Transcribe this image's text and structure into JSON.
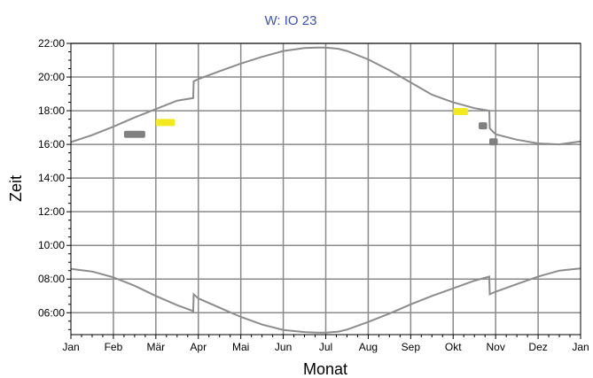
{
  "chart_data": {
    "type": "line",
    "title": "W: IO 23",
    "xlabel": "Monat",
    "ylabel": "Zeit",
    "x_tick_labels": [
      "Jan",
      "Feb",
      "Mär",
      "Apr",
      "Mai",
      "Jun",
      "Jul",
      "Aug",
      "Sep",
      "Okt",
      "Nov",
      "Dez",
      "Jan"
    ],
    "y_tick_labels": [
      "06:00",
      "08:00",
      "10:00",
      "12:00",
      "14:00",
      "16:00",
      "18:00",
      "20:00",
      "22:00"
    ],
    "xlim": [
      0,
      12
    ],
    "ylim": [
      4.7,
      22.0
    ],
    "grid": true,
    "series": [
      {
        "role": "upper",
        "color": "#8c8c8c",
        "x": [
          0,
          0.5,
          1,
          1.5,
          2,
          2.5,
          2.88,
          2.89,
          3,
          3.5,
          4,
          4.5,
          5,
          5.5,
          5.8,
          6.0,
          6.3,
          6.5,
          7,
          7.5,
          8,
          8.5,
          9,
          9.5,
          9.85,
          9.86,
          10,
          10.5,
          11,
          11.5,
          12
        ],
        "y": [
          16.13,
          16.55,
          17.05,
          17.6,
          18.1,
          18.6,
          18.75,
          19.75,
          19.88,
          20.35,
          20.8,
          21.2,
          21.55,
          21.72,
          21.75,
          21.75,
          21.68,
          21.55,
          21.05,
          20.4,
          19.68,
          18.95,
          18.5,
          18.15,
          18.0,
          16.95,
          16.6,
          16.28,
          16.06,
          16.0,
          16.18
        ]
      },
      {
        "role": "lower",
        "color": "#8c8c8c",
        "x": [
          0,
          0.5,
          1,
          1.5,
          2,
          2.5,
          2.88,
          2.89,
          3,
          3.5,
          4,
          4.5,
          5,
          5.5,
          5.8,
          6.0,
          6.3,
          6.5,
          7,
          7.5,
          8,
          8.5,
          9,
          9.5,
          9.85,
          9.86,
          10,
          10.5,
          11,
          11.5,
          12
        ],
        "y": [
          8.6,
          8.45,
          8.1,
          7.6,
          7.0,
          6.45,
          6.1,
          7.1,
          6.85,
          6.3,
          5.75,
          5.3,
          4.98,
          4.85,
          4.82,
          4.82,
          4.88,
          5.0,
          5.45,
          5.95,
          6.5,
          7.0,
          7.45,
          7.9,
          8.15,
          7.1,
          7.25,
          7.7,
          8.15,
          8.5,
          8.63
        ]
      }
    ],
    "markers": [
      {
        "color": "#f2ea1f",
        "x": [
          2.0,
          2.45
        ],
        "y": 17.3
      },
      {
        "color": "#f2ea1f",
        "x": [
          9.0,
          9.35
        ],
        "y": 17.95
      },
      {
        "color": "#808080",
        "x": [
          1.25,
          1.75
        ],
        "y": 16.6
      },
      {
        "color": "#808080",
        "x": [
          9.6,
          9.8
        ],
        "y": 17.1
      },
      {
        "color": "#808080",
        "x": [
          9.85,
          10.05
        ],
        "y": 16.15
      }
    ]
  }
}
